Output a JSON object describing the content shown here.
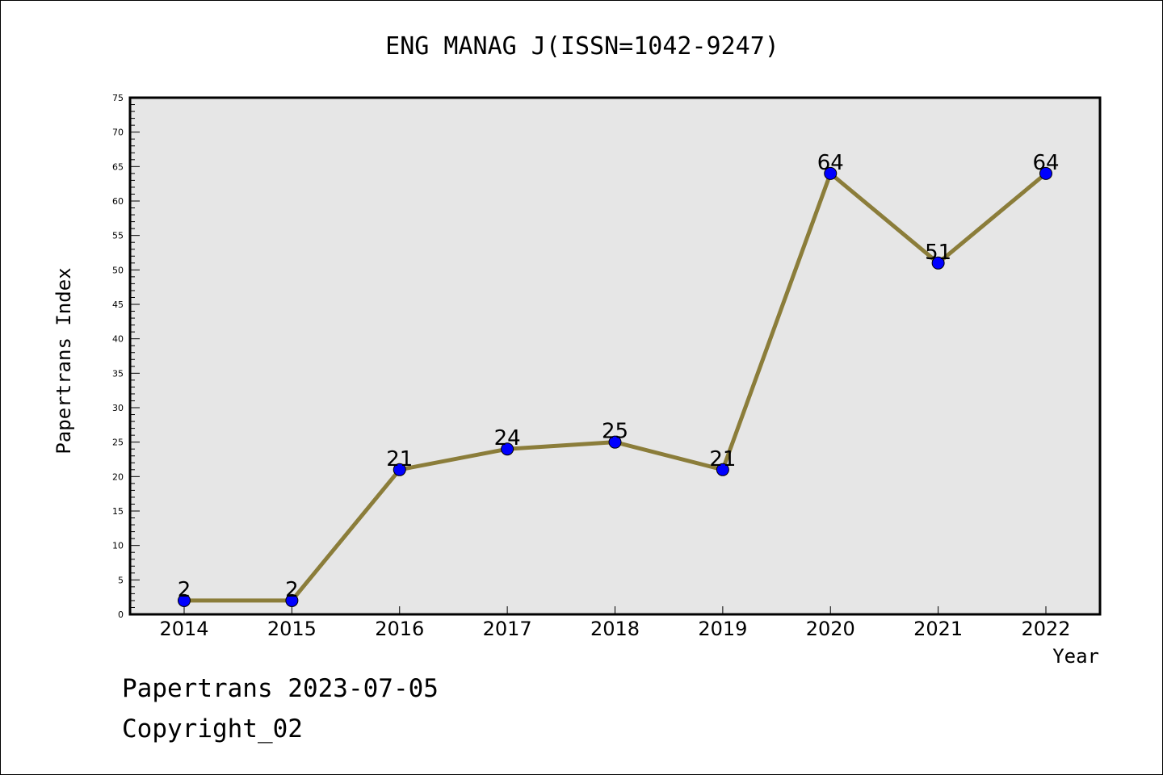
{
  "chart_data": {
    "type": "line",
    "title": "ENG MANAG J(ISSN=1042-9247)",
    "xlabel": "Year",
    "ylabel": "Papertrans Index",
    "categories": [
      "2014",
      "2015",
      "2016",
      "2017",
      "2018",
      "2019",
      "2020",
      "2021",
      "2022"
    ],
    "series": [
      {
        "values": [
          2,
          2,
          21,
          24,
          25,
          21,
          64,
          51,
          64
        ]
      }
    ],
    "data_labels": [
      "2",
      "2",
      "21",
      "24",
      "25",
      "21",
      "64",
      "51",
      "64"
    ],
    "ylim": [
      0,
      75
    ],
    "ytick_labels": [
      "0",
      "5",
      "10",
      "15",
      "20",
      "25",
      "30",
      "35",
      "40",
      "45",
      "50",
      "55",
      "60",
      "65",
      "70",
      "75"
    ],
    "grid": false,
    "legend": "none",
    "colors": {
      "line": "#8b7d3a",
      "marker": "#0000ff",
      "plot_background": "#e6e6e6",
      "frame": "#000000"
    }
  },
  "footer": {
    "line1": "Papertrans 2023-07-05",
    "line2": "Copyright_02"
  }
}
